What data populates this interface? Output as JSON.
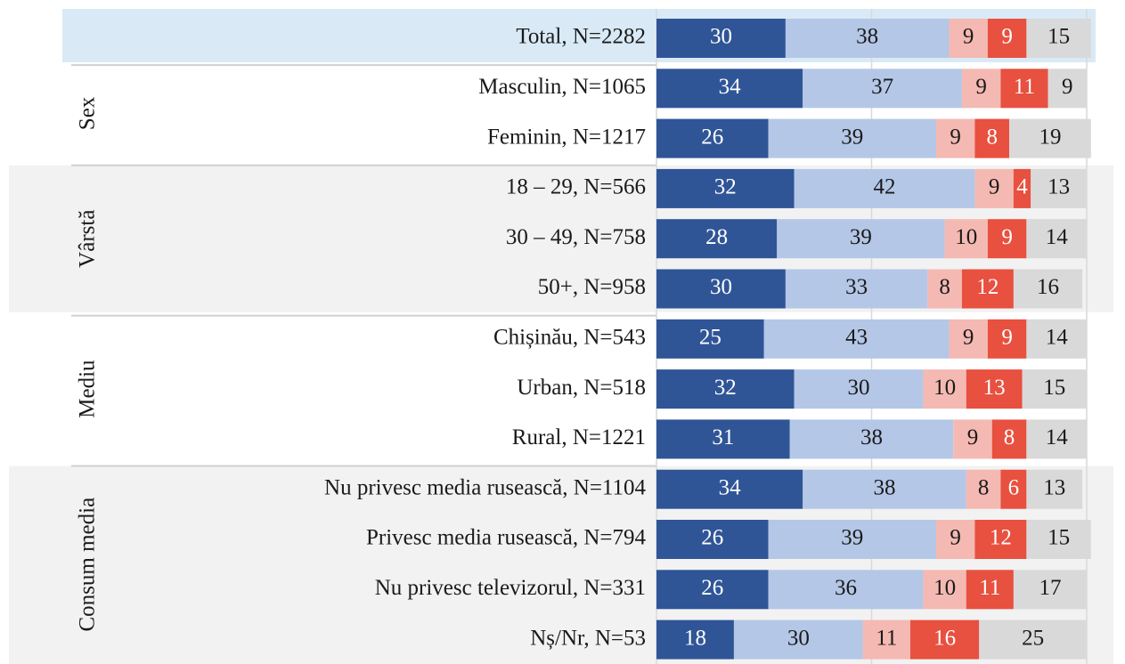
{
  "chart_data": {
    "type": "bar",
    "orientation": "horizontal",
    "stacked": true,
    "categories": [
      "Total, N=2282",
      "Masculin, N=1065",
      "Feminin, N=1217",
      "18 – 29, N=566",
      "30 – 49, N=758",
      "50+, N=958",
      "Chișinău, N=543",
      "Urban, N=518",
      "Rural, N=1221",
      "Nu privesc media rusească, N=1104",
      "Privesc media rusească, N=794",
      "Nu privesc televizorul, N=331",
      "Nș/Nr, N=53"
    ],
    "groups": [
      null,
      "Sex",
      "Sex",
      "Vârstă",
      "Vârstă",
      "Vârstă",
      "Mediu",
      "Mediu",
      "Mediu",
      "Consum media",
      "Consum media",
      "Consum media",
      "Consum media"
    ],
    "series": [
      {
        "color": "#2f5597",
        "values": [
          30,
          34,
          26,
          32,
          28,
          30,
          25,
          32,
          31,
          34,
          26,
          26,
          18
        ]
      },
      {
        "color": "#b4c7e7",
        "values": [
          38,
          37,
          39,
          42,
          39,
          33,
          43,
          30,
          38,
          38,
          39,
          36,
          30
        ]
      },
      {
        "color": "#f4b9b2",
        "values": [
          9,
          9,
          9,
          9,
          10,
          8,
          9,
          10,
          9,
          8,
          9,
          10,
          11
        ]
      },
      {
        "color": "#e8503f",
        "values": [
          9,
          11,
          8,
          4,
          9,
          12,
          9,
          13,
          8,
          6,
          12,
          11,
          16
        ]
      },
      {
        "color": "#d9d9d9",
        "values": [
          15,
          9,
          19,
          13,
          14,
          16,
          14,
          15,
          14,
          13,
          15,
          17,
          25
        ]
      }
    ],
    "xlim": [
      0,
      100
    ],
    "xticks": [
      0,
      50,
      100
    ],
    "grid": true
  }
}
